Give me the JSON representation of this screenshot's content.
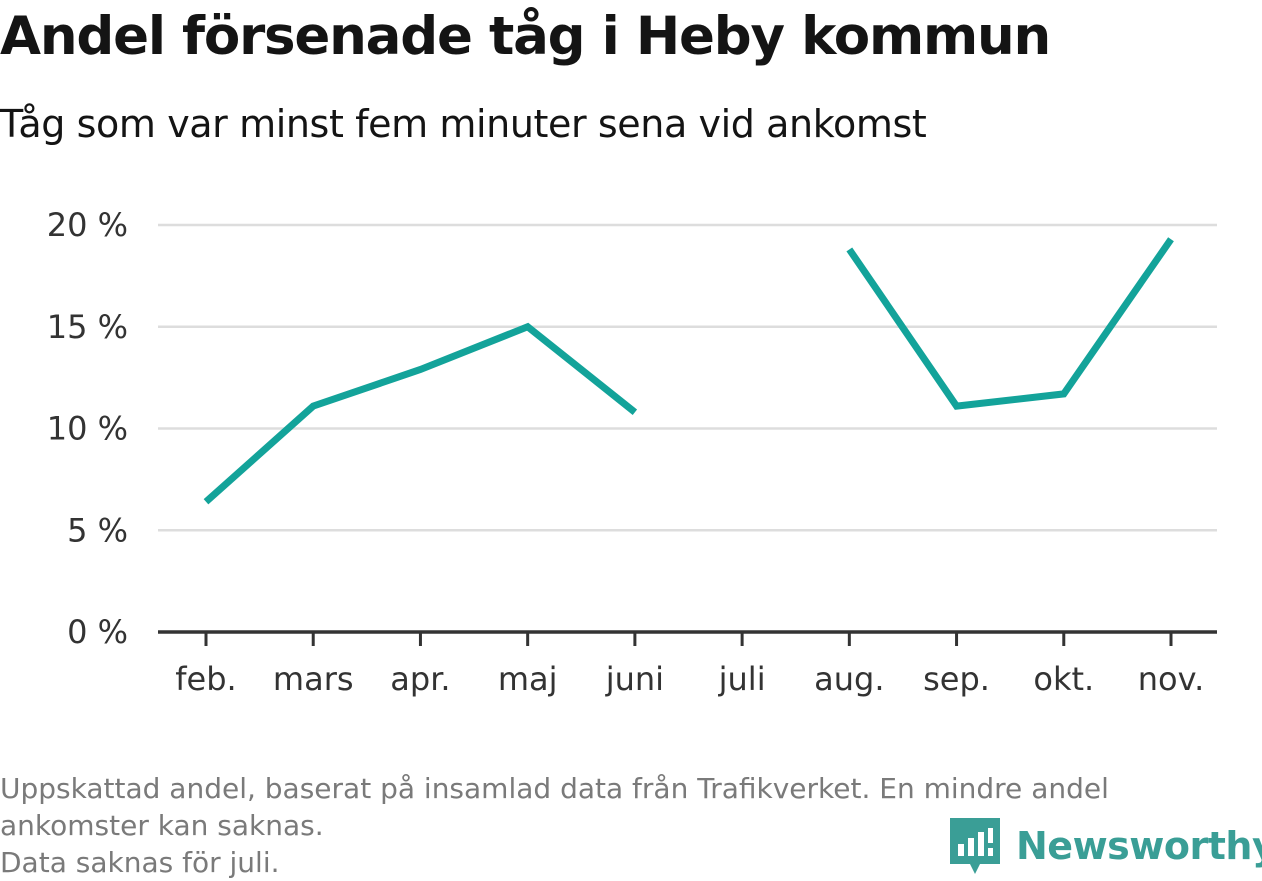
{
  "title": "Andel försenade tåg i Heby kommun",
  "subtitle": "Tåg som var minst fem minuter sena vid ankomst",
  "footnote": {
    "line1": "Uppskattad andel, baserat på insamlad data från Trafikverket. En mindre andel",
    "line2": "ankomster kan saknas.",
    "line3": "Data saknas för juli."
  },
  "brand": {
    "name": "Newsworthy",
    "icon": "newsworthy-logo-icon"
  },
  "colors": {
    "line": "#13a39a",
    "grid": "#dddddd",
    "axis": "#333333"
  },
  "chart_data": {
    "type": "line",
    "categories": [
      "feb.",
      "mars",
      "apr.",
      "maj",
      "juni",
      "juli",
      "aug.",
      "sep.",
      "okt.",
      "nov."
    ],
    "series": [
      {
        "values": [
          6.4,
          11.1,
          12.9,
          15.0,
          10.8,
          null,
          18.8,
          11.1,
          11.7,
          19.3
        ]
      }
    ],
    "y_ticks": [
      0,
      5,
      10,
      15,
      20
    ],
    "y_tick_labels": [
      "0 %",
      "5 %",
      "10 %",
      "15 %",
      "20 %"
    ],
    "ylim": [
      0,
      20
    ],
    "xlabel": "",
    "ylabel": "",
    "grid": true,
    "legend": "none"
  }
}
